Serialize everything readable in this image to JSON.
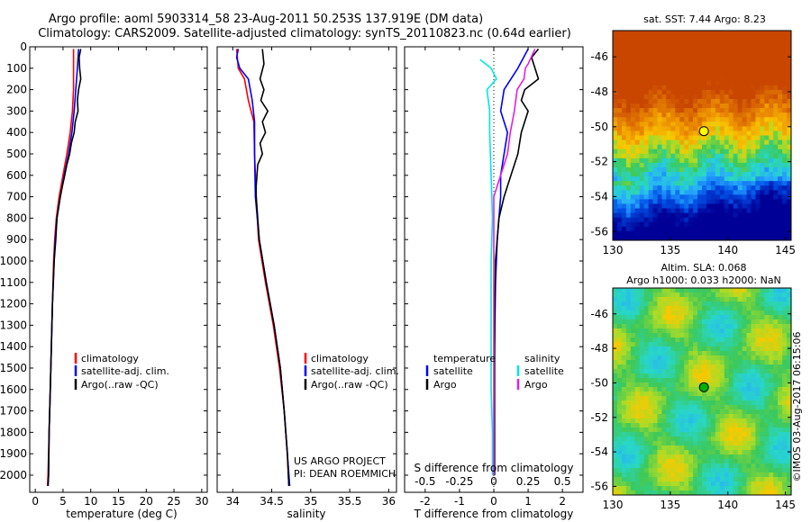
{
  "header": {
    "line1": "Argo profile: aoml 5903314_58 23-Aug-2011 50.253S 137.919E (DM data)",
    "line2": "Climatology: CARS2009. Satellite-adjusted climatology: synTS_20110823.nc (0.64d earlier)"
  },
  "colors": {
    "climatology": "#ff0000",
    "satellite": "#0000ff",
    "argo": "#000000",
    "salinity_satellite": "#00e5e5",
    "salinity_argo": "#e020e0"
  },
  "chart_data": [
    {
      "type": "line",
      "id": "temperature",
      "xlabel": "temperature (deg C)",
      "xlim": [
        -1,
        31
      ],
      "xticks": [
        0,
        5,
        10,
        15,
        20,
        25,
        30
      ],
      "ylim": [
        0,
        2080
      ],
      "yticks": [
        0,
        100,
        200,
        300,
        400,
        500,
        600,
        700,
        800,
        900,
        1000,
        1100,
        1200,
        1300,
        1400,
        1500,
        1600,
        1700,
        1800,
        1900,
        2000
      ],
      "legend": {
        "position": "lower-center",
        "entries": [
          "climatology",
          "satellite-adj. clim.",
          "Argo(..raw -QC)"
        ]
      },
      "series": [
        {
          "name": "climatology",
          "color": "#ff0000",
          "points": [
            [
              6.9,
              10
            ],
            [
              6.9,
              100
            ],
            [
              6.9,
              200
            ],
            [
              6.7,
              300
            ],
            [
              6.3,
              400
            ],
            [
              5.7,
              500
            ],
            [
              5.0,
              600
            ],
            [
              4.3,
              700
            ],
            [
              3.8,
              800
            ],
            [
              3.5,
              900
            ],
            [
              3.3,
              1000
            ],
            [
              3.1,
              1200
            ],
            [
              2.9,
              1400
            ],
            [
              2.7,
              1600
            ],
            [
              2.5,
              1800
            ],
            [
              2.3,
              2000
            ],
            [
              2.2,
              2050
            ]
          ]
        },
        {
          "name": "satellite-adj. clim.",
          "color": "#0000ff",
          "points": [
            [
              7.8,
              10
            ],
            [
              7.6,
              100
            ],
            [
              7.3,
              200
            ],
            [
              7.0,
              300
            ],
            [
              6.6,
              400
            ],
            [
              6.0,
              500
            ],
            [
              5.2,
              600
            ],
            [
              4.5,
              700
            ],
            [
              3.9,
              800
            ],
            [
              3.6,
              900
            ],
            [
              3.4,
              1000
            ],
            [
              3.1,
              1200
            ],
            [
              2.9,
              1400
            ],
            [
              2.7,
              1600
            ],
            [
              2.5,
              1800
            ],
            [
              2.4,
              2000
            ],
            [
              2.3,
              2050
            ]
          ]
        },
        {
          "name": "Argo(..raw -QC)",
          "color": "#000000",
          "points": [
            [
              8.2,
              10
            ],
            [
              7.9,
              50
            ],
            [
              8.0,
              100
            ],
            [
              8.2,
              150
            ],
            [
              7.8,
              200
            ],
            [
              7.6,
              250
            ],
            [
              7.7,
              300
            ],
            [
              7.2,
              350
            ],
            [
              7.0,
              400
            ],
            [
              6.5,
              450
            ],
            [
              6.2,
              500
            ],
            [
              5.7,
              550
            ],
            [
              5.3,
              600
            ],
            [
              4.9,
              650
            ],
            [
              4.5,
              700
            ],
            [
              4.2,
              750
            ],
            [
              3.9,
              800
            ],
            [
              3.7,
              900
            ],
            [
              3.4,
              1000
            ],
            [
              3.1,
              1200
            ],
            [
              2.9,
              1400
            ],
            [
              2.7,
              1600
            ],
            [
              2.5,
              1800
            ],
            [
              2.4,
              2000
            ],
            [
              2.3,
              2050
            ]
          ]
        }
      ]
    },
    {
      "type": "line",
      "id": "salinity",
      "xlabel": "salinity",
      "xlim": [
        33.8,
        36.1
      ],
      "xticks": [
        34,
        34.5,
        35,
        35.5,
        36
      ],
      "ylim": [
        0,
        2080
      ],
      "legend": {
        "position": "lower-center",
        "entries": [
          "climatology",
          "satellite-adj. clim.",
          "Argo(..raw -QC)"
        ]
      },
      "annotation": [
        "US ARGO PROJECT",
        "PI: DEAN ROEMMICH"
      ],
      "series": [
        {
          "name": "climatology",
          "color": "#ff0000",
          "points": [
            [
              34.05,
              10
            ],
            [
              34.07,
              100
            ],
            [
              34.15,
              150
            ],
            [
              34.2,
              250
            ],
            [
              34.27,
              350
            ],
            [
              34.28,
              500
            ],
            [
              34.3,
              700
            ],
            [
              34.33,
              900
            ],
            [
              34.42,
              1100
            ],
            [
              34.52,
              1300
            ],
            [
              34.6,
              1500
            ],
            [
              34.66,
              1700
            ],
            [
              34.7,
              1900
            ],
            [
              34.72,
              2050
            ]
          ]
        },
        {
          "name": "satellite-adj. clim.",
          "color": "#0000ff",
          "points": [
            [
              34.07,
              10
            ],
            [
              34.05,
              50
            ],
            [
              34.09,
              100
            ],
            [
              34.2,
              150
            ],
            [
              34.25,
              250
            ],
            [
              34.28,
              350
            ],
            [
              34.28,
              500
            ],
            [
              34.29,
              700
            ],
            [
              34.34,
              900
            ],
            [
              34.43,
              1100
            ],
            [
              34.53,
              1300
            ],
            [
              34.61,
              1500
            ],
            [
              34.66,
              1700
            ],
            [
              34.7,
              1900
            ],
            [
              34.73,
              2050
            ]
          ]
        },
        {
          "name": "Argo(..raw -QC)",
          "color": "#000000",
          "points": [
            [
              34.38,
              10
            ],
            [
              34.4,
              80
            ],
            [
              34.35,
              150
            ],
            [
              34.4,
              200
            ],
            [
              34.36,
              250
            ],
            [
              34.45,
              300
            ],
            [
              34.38,
              350
            ],
            [
              34.42,
              400
            ],
            [
              34.35,
              450
            ],
            [
              34.38,
              500
            ],
            [
              34.32,
              550
            ],
            [
              34.3,
              650
            ],
            [
              34.3,
              700
            ],
            [
              34.34,
              900
            ],
            [
              34.43,
              1100
            ],
            [
              34.53,
              1300
            ],
            [
              34.61,
              1500
            ],
            [
              34.66,
              1700
            ],
            [
              34.7,
              1900
            ],
            [
              34.72,
              2050
            ]
          ]
        }
      ]
    },
    {
      "type": "line",
      "id": "difference",
      "xlabel": "T difference from climatology",
      "xlim": [
        -2.6,
        2.6
      ],
      "xticks": [
        -2,
        -1,
        0,
        1,
        2
      ],
      "xlabel_top": "S difference from climatology",
      "xticks_top": [
        -0.5,
        -0.25,
        0,
        0.25,
        0.5
      ],
      "xticks_top_labels": [
        "-0.5",
        "-0.25",
        "0",
        "0.25",
        "0.5"
      ],
      "ylim": [
        0,
        2080
      ],
      "legend": {
        "position": "center",
        "temperature_title": "temperature",
        "salinity_title": "salinity",
        "entries": [
          "satellite",
          "Argo",
          "satellite",
          "Argo"
        ]
      },
      "series": [
        {
          "name": "T satellite",
          "group": "temperature",
          "color": "#0000ff",
          "points": [
            [
              1.0,
              10
            ],
            [
              0.7,
              100
            ],
            [
              0.3,
              200
            ],
            [
              0.2,
              300
            ],
            [
              0.4,
              400
            ],
            [
              0.3,
              500
            ],
            [
              0.2,
              600
            ],
            [
              0.2,
              700
            ],
            [
              0.1,
              900
            ],
            [
              0.05,
              1100
            ],
            [
              0.02,
              1400
            ],
            [
              0.02,
              2000
            ]
          ]
        },
        {
          "name": "T Argo",
          "group": "temperature",
          "color": "#000000",
          "points": [
            [
              1.3,
              10
            ],
            [
              1.1,
              50
            ],
            [
              1.2,
              100
            ],
            [
              1.3,
              150
            ],
            [
              0.9,
              200
            ],
            [
              0.8,
              250
            ],
            [
              1.0,
              300
            ],
            [
              0.9,
              350
            ],
            [
              0.8,
              400
            ],
            [
              0.7,
              500
            ],
            [
              0.5,
              600
            ],
            [
              0.3,
              700
            ],
            [
              0.15,
              800
            ],
            [
              0.1,
              900
            ],
            [
              0.05,
              1000
            ],
            [
              0.03,
              1200
            ],
            [
              0.02,
              1500
            ],
            [
              0.02,
              2000
            ]
          ]
        },
        {
          "name": "S satellite",
          "group": "salinity",
          "color": "#00e5e5",
          "points": [
            [
              -0.1,
              60
            ],
            [
              -0.02,
              100
            ],
            [
              0.02,
              150
            ],
            [
              -0.05,
              200
            ],
            [
              -0.03,
              300
            ],
            [
              -0.03,
              400
            ],
            [
              -0.02,
              600
            ],
            [
              -0.01,
              800
            ],
            [
              -0.02,
              1000
            ],
            [
              -0.02,
              1300
            ],
            [
              -0.02,
              1600
            ],
            [
              -0.01,
              1800
            ],
            [
              -0.01,
              2000
            ]
          ]
        },
        {
          "name": "S Argo",
          "group": "salinity",
          "color": "#e020e0",
          "points": [
            [
              0.3,
              10
            ],
            [
              0.25,
              80
            ],
            [
              0.23,
              100
            ],
            [
              0.22,
              150
            ],
            [
              0.17,
              200
            ],
            [
              0.15,
              300
            ],
            [
              0.12,
              400
            ],
            [
              0.1,
              500
            ],
            [
              0.05,
              600
            ],
            [
              0.0,
              700
            ],
            [
              0.0,
              1000
            ],
            [
              0.0,
              1400
            ],
            [
              0.0,
              2000
            ]
          ]
        }
      ]
    },
    {
      "type": "heatmap",
      "id": "sst-map",
      "title": "sat. SST: 7.44 Argo: 8.23",
      "xlim": [
        130,
        145.5
      ],
      "xticks": [
        130,
        135,
        140,
        145
      ],
      "ylim": [
        -56.5,
        -44.5
      ],
      "yticks": [
        -46,
        -48,
        -50,
        -52,
        -54,
        -56
      ],
      "marker": {
        "lon": 137.919,
        "lat": -50.253,
        "fill": "#ffff00"
      }
    },
    {
      "type": "heatmap",
      "id": "sla-map",
      "title": "Altim. SLA: 0.068",
      "subtitle": "Argo h1000: 0.033 h2000: NaN",
      "xlim": [
        130,
        145.5
      ],
      "xticks": [
        130,
        135,
        140,
        145
      ],
      "ylim": [
        -56.5,
        -44.5
      ],
      "yticks": [
        -46,
        -48,
        -50,
        -52,
        -54,
        -56
      ],
      "marker": {
        "lon": 137.919,
        "lat": -50.253,
        "fill": "#00b000"
      }
    }
  ],
  "footer": {
    "credit": "©IMOS 03-Aug-2017 06:15:06"
  }
}
